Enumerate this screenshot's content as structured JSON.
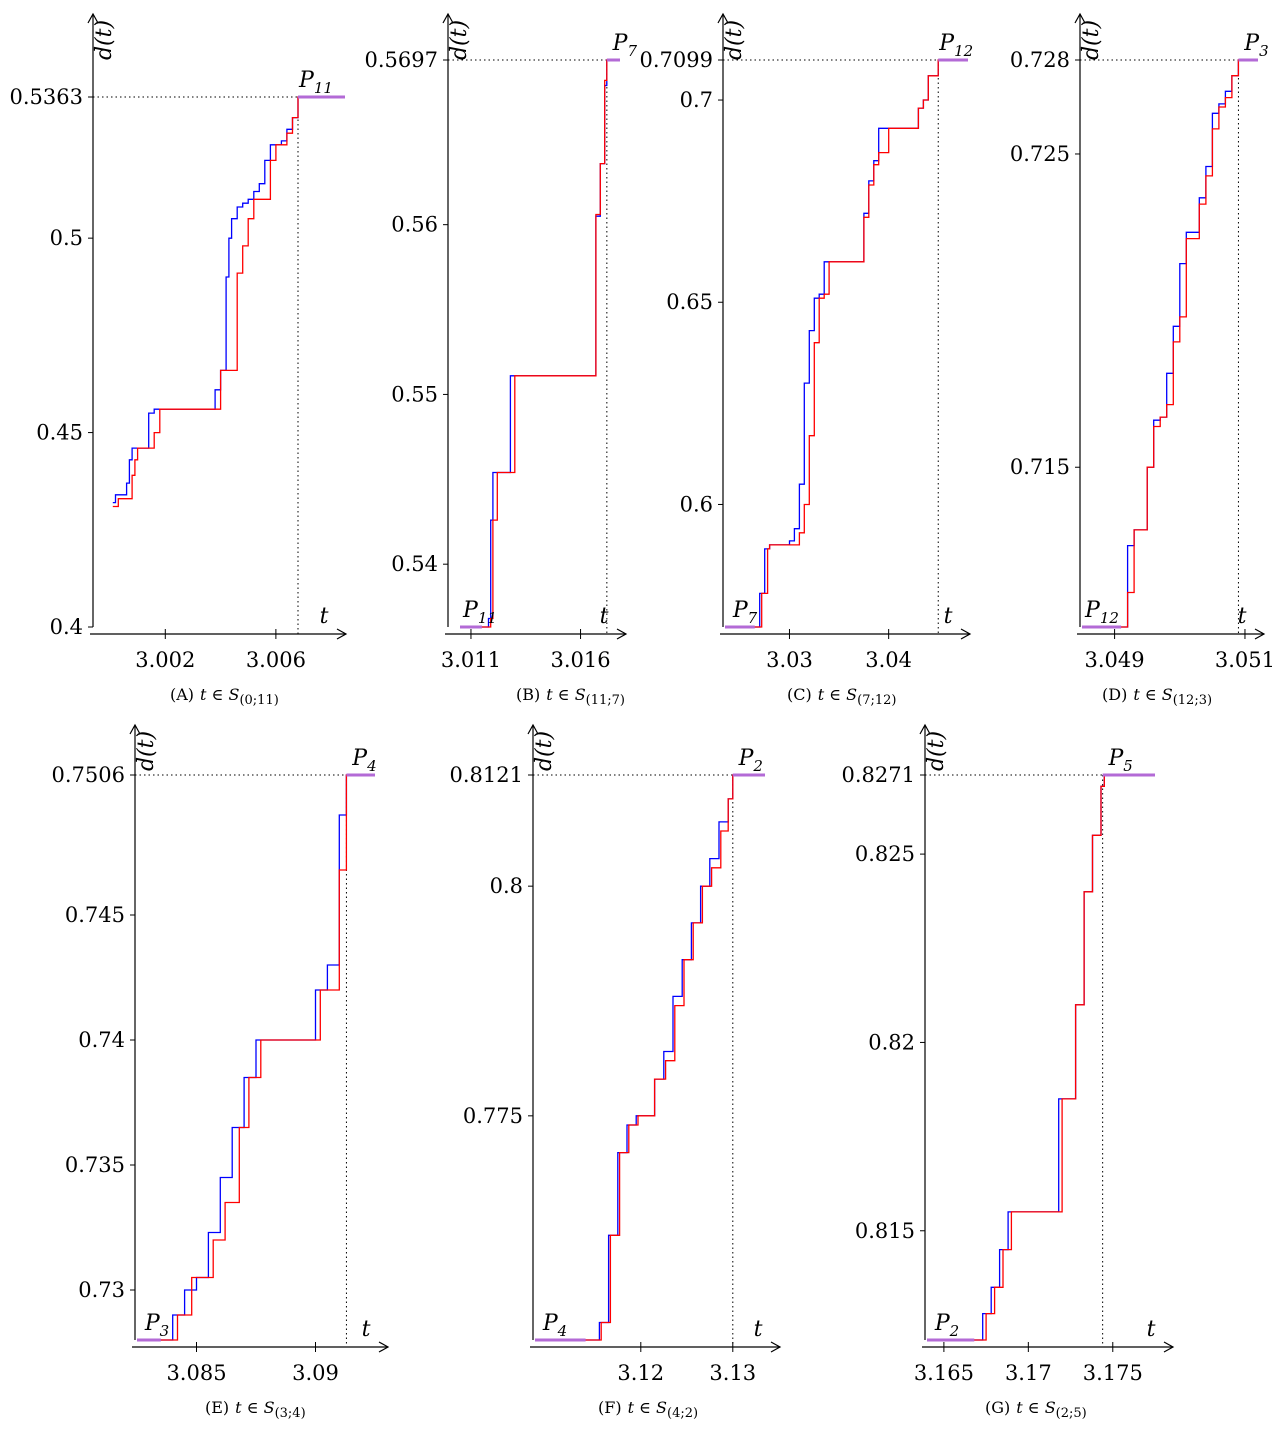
{
  "chart_data": [
    {
      "type": "line",
      "caption": {
        "tag": "(A)",
        "text": "t ∈ S",
        "sub": "(0;11)"
      },
      "x_axis_label": "t",
      "y_axis_label": "d(t)",
      "xlim": [
        3.0,
        3.0085
      ],
      "ylim": [
        0.4,
        0.5363
      ],
      "x_ticks": [
        {
          "v": 3.002,
          "label": "3.002"
        },
        {
          "v": 3.006,
          "label": "3.006"
        }
      ],
      "y_ticks": [
        {
          "v": 0.4,
          "label": "0.4"
        },
        {
          "v": 0.45,
          "label": "0.45"
        },
        {
          "v": 0.5,
          "label": "0.5"
        }
      ],
      "y_target": {
        "v": 0.5363,
        "label": "0.5363"
      },
      "x_target": 3.0068,
      "start_point": {
        "label": "",
        "sub": ""
      },
      "end_point": {
        "label": "P",
        "sub": "11"
      },
      "series": [
        {
          "color": "#0000ff",
          "x": [
            3.0001,
            3.0002,
            3.0005,
            3.0006,
            3.0007,
            3.0008,
            3.001,
            3.0012,
            3.0014,
            3.0016,
            3.0018,
            3.002,
            3.0022,
            3.003,
            3.0038,
            3.004,
            3.0042,
            3.0043,
            3.0044,
            3.0046,
            3.0048,
            3.005,
            3.0052,
            3.0054,
            3.0056,
            3.0058,
            3.006,
            3.0062,
            3.0064,
            3.0066,
            3.0068,
            3.0085
          ],
          "y": [
            0.432,
            0.434,
            0.434,
            0.437,
            0.443,
            0.446,
            0.446,
            0.446,
            0.455,
            0.456,
            0.456,
            0.456,
            0.456,
            0.456,
            0.461,
            0.466,
            0.49,
            0.5,
            0.505,
            0.508,
            0.509,
            0.51,
            0.512,
            0.514,
            0.52,
            0.524,
            0.524,
            0.525,
            0.528,
            0.531,
            0.5363,
            0.5363
          ]
        },
        {
          "color": "#ff0000",
          "x": [
            3.0001,
            3.0003,
            3.0006,
            3.0008,
            3.0009,
            3.001,
            3.0012,
            3.0014,
            3.0016,
            3.0018,
            3.002,
            3.003,
            3.0038,
            3.004,
            3.0042,
            3.0044,
            3.0046,
            3.0048,
            3.005,
            3.0052,
            3.0054,
            3.0056,
            3.0058,
            3.006,
            3.0062,
            3.0064,
            3.0066,
            3.0068,
            3.0085
          ],
          "y": [
            0.431,
            0.433,
            0.433,
            0.439,
            0.443,
            0.446,
            0.446,
            0.446,
            0.45,
            0.456,
            0.456,
            0.456,
            0.456,
            0.466,
            0.466,
            0.466,
            0.491,
            0.498,
            0.505,
            0.51,
            0.51,
            0.51,
            0.52,
            0.524,
            0.524,
            0.527,
            0.531,
            0.5363,
            0.5363
          ]
        }
      ]
    },
    {
      "type": "line",
      "caption": {
        "tag": "(B)",
        "text": "t ∈ S",
        "sub": "(11;7)"
      },
      "x_axis_label": "t",
      "y_axis_label": "d(t)",
      "xlim": [
        3.0105,
        3.0178
      ],
      "ylim": [
        0.5363,
        0.5697
      ],
      "x_ticks": [
        {
          "v": 3.011,
          "label": "3.011"
        },
        {
          "v": 3.016,
          "label": "3.016"
        }
      ],
      "y_ticks": [
        {
          "v": 0.54,
          "label": "0.54"
        },
        {
          "v": 0.55,
          "label": "0.55"
        },
        {
          "v": 0.56,
          "label": "0.56"
        }
      ],
      "y_target": {
        "v": 0.5697,
        "label": "0.5697"
      },
      "x_target": 3.0172,
      "start_point": {
        "label": "P",
        "sub": "11"
      },
      "end_point": {
        "label": "P",
        "sub": "7"
      },
      "series": [
        {
          "color": "#0000ff",
          "x": [
            3.0105,
            3.0115,
            3.0118,
            3.0119,
            3.012,
            3.0122,
            3.0125,
            3.0128,
            3.013,
            3.014,
            3.015,
            3.0165,
            3.0167,
            3.0169,
            3.0171,
            3.0172,
            3.0178
          ],
          "y": [
            0.5363,
            0.5363,
            0.5368,
            0.5426,
            0.5454,
            0.5454,
            0.5454,
            0.5511,
            0.5511,
            0.5511,
            0.5511,
            0.5511,
            0.5605,
            0.5636,
            0.5682,
            0.5697,
            0.5697
          ]
        },
        {
          "color": "#ff0000",
          "x": [
            3.0105,
            3.0117,
            3.0119,
            3.012,
            3.0122,
            3.0125,
            3.0129,
            3.013,
            3.014,
            3.0165,
            3.0167,
            3.0169,
            3.0171,
            3.0172,
            3.0178
          ],
          "y": [
            0.5363,
            0.5363,
            0.5368,
            0.5426,
            0.5454,
            0.5454,
            0.5454,
            0.5511,
            0.5511,
            0.5511,
            0.5606,
            0.5636,
            0.5685,
            0.5697,
            0.5697
          ]
        }
      ]
    },
    {
      "type": "line",
      "caption": {
        "tag": "(C)",
        "text": "t ∈ S",
        "sub": "(7;12)"
      },
      "x_axis_label": "t",
      "y_axis_label": "d(t)",
      "xlim": [
        3.0235,
        3.048
      ],
      "ylim": [
        0.5697,
        0.7099
      ],
      "x_ticks": [
        {
          "v": 3.03,
          "label": "3.03"
        },
        {
          "v": 3.04,
          "label": "3.04"
        }
      ],
      "y_ticks": [
        {
          "v": 0.6,
          "label": "0.6"
        },
        {
          "v": 0.65,
          "label": "0.65"
        },
        {
          "v": 0.7,
          "label": "0.7"
        }
      ],
      "y_target": {
        "v": 0.7099,
        "label": "0.7099"
      },
      "x_target": 3.045,
      "start_point": {
        "label": "P",
        "sub": "7"
      },
      "end_point": {
        "label": "P",
        "sub": "12"
      },
      "series": [
        {
          "color": "#0000ff",
          "x": [
            3.0235,
            3.0265,
            3.027,
            3.0275,
            3.028,
            3.03,
            3.0305,
            3.031,
            3.0315,
            3.032,
            3.0325,
            3.033,
            3.0335,
            3.034,
            3.037,
            3.0375,
            3.038,
            3.0385,
            3.039,
            3.04,
            3.0425,
            3.043,
            3.0435,
            3.044,
            3.045,
            3.048
          ],
          "y": [
            0.5697,
            0.5697,
            0.578,
            0.589,
            0.59,
            0.591,
            0.594,
            0.605,
            0.63,
            0.643,
            0.651,
            0.652,
            0.66,
            0.66,
            0.66,
            0.672,
            0.68,
            0.685,
            0.693,
            0.693,
            0.693,
            0.698,
            0.7,
            0.706,
            0.7099,
            0.7099
          ]
        },
        {
          "color": "#ff0000",
          "x": [
            3.0235,
            3.0268,
            3.0272,
            3.0278,
            3.028,
            3.03,
            3.031,
            3.0315,
            3.032,
            3.0325,
            3.033,
            3.0335,
            3.034,
            3.037,
            3.0375,
            3.038,
            3.0385,
            3.039,
            3.04,
            3.0425,
            3.043,
            3.0435,
            3.044,
            3.045,
            3.048
          ],
          "y": [
            0.5697,
            0.5697,
            0.578,
            0.589,
            0.59,
            0.59,
            0.593,
            0.6,
            0.617,
            0.64,
            0.651,
            0.652,
            0.66,
            0.66,
            0.671,
            0.679,
            0.684,
            0.687,
            0.693,
            0.693,
            0.698,
            0.7,
            0.706,
            0.7099,
            0.7099
          ]
        }
      ]
    },
    {
      "type": "line",
      "caption": {
        "tag": "(D)",
        "text": "t ∈ S",
        "sub": "(12;3)"
      },
      "x_axis_label": "t",
      "y_axis_label": "d(t)",
      "xlim": [
        3.0485,
        3.0512
      ],
      "ylim": [
        0.7099,
        0.728
      ],
      "x_ticks": [
        {
          "v": 3.049,
          "label": "3.049"
        },
        {
          "v": 3.051,
          "label": "3.051"
        }
      ],
      "y_ticks": [
        {
          "v": 0.715,
          "label": "0.715"
        },
        {
          "v": 0.725,
          "label": "0.725"
        }
      ],
      "y_target": {
        "v": 0.728,
        "label": "0.728"
      },
      "x_target": 3.0509,
      "start_point": {
        "label": "P",
        "sub": "12"
      },
      "end_point": {
        "label": "P",
        "sub": "3"
      },
      "series": [
        {
          "color": "#0000ff",
          "x": [
            3.0485,
            3.0491,
            3.0492,
            3.0493,
            3.0495,
            3.0496,
            3.0497,
            3.0498,
            3.0499,
            3.05,
            3.0501,
            3.0502,
            3.0503,
            3.0504,
            3.0505,
            3.0506,
            3.0507,
            3.0508,
            3.0509,
            3.0512
          ],
          "y": [
            0.7099,
            0.7099,
            0.7125,
            0.713,
            0.715,
            0.7165,
            0.7166,
            0.718,
            0.7195,
            0.7215,
            0.7225,
            0.7225,
            0.7236,
            0.7246,
            0.7263,
            0.7266,
            0.727,
            0.7275,
            0.728,
            0.728
          ]
        },
        {
          "color": "#ff0000",
          "x": [
            3.0485,
            3.0491,
            3.0492,
            3.0493,
            3.0495,
            3.0496,
            3.0497,
            3.0498,
            3.0499,
            3.05,
            3.0501,
            3.0502,
            3.0503,
            3.0504,
            3.0505,
            3.0506,
            3.0507,
            3.0508,
            3.0509,
            3.0512
          ],
          "y": [
            0.7099,
            0.7099,
            0.711,
            0.713,
            0.715,
            0.7163,
            0.7166,
            0.717,
            0.719,
            0.7198,
            0.7223,
            0.7223,
            0.7234,
            0.7243,
            0.7258,
            0.7265,
            0.7268,
            0.7275,
            0.728,
            0.728
          ]
        }
      ]
    },
    {
      "type": "line",
      "caption": {
        "tag": "(E)",
        "text": "t ∈ S",
        "sub": "(3;4)"
      },
      "x_axis_label": "t",
      "y_axis_label": "d(t)",
      "xlim": [
        3.0825,
        3.0925
      ],
      "ylim": [
        0.728,
        0.7506
      ],
      "x_ticks": [
        {
          "v": 3.085,
          "label": "3.085"
        },
        {
          "v": 3.09,
          "label": "3.09"
        }
      ],
      "y_ticks": [
        {
          "v": 0.73,
          "label": "0.73"
        },
        {
          "v": 0.735,
          "label": "0.735"
        },
        {
          "v": 0.74,
          "label": "0.74"
        },
        {
          "v": 0.745,
          "label": "0.745"
        }
      ],
      "y_target": {
        "v": 0.7506,
        "label": "0.7506"
      },
      "x_target": 3.0913,
      "start_point": {
        "label": "P",
        "sub": "3"
      },
      "end_point": {
        "label": "P",
        "sub": "4"
      },
      "series": [
        {
          "color": "#0000ff",
          "x": [
            3.0825,
            3.0835,
            3.084,
            3.0845,
            3.085,
            3.0855,
            3.086,
            3.0865,
            3.087,
            3.0875,
            3.0885,
            3.089,
            3.0895,
            3.09,
            3.0905,
            3.091,
            3.0913,
            3.0925
          ],
          "y": [
            0.728,
            0.728,
            0.729,
            0.73,
            0.7305,
            0.7323,
            0.7345,
            0.7365,
            0.7385,
            0.74,
            0.74,
            0.74,
            0.74,
            0.742,
            0.743,
            0.749,
            0.7506,
            0.7506
          ]
        },
        {
          "color": "#ff0000",
          "x": [
            3.0825,
            3.0835,
            3.0842,
            3.0848,
            3.0852,
            3.0857,
            3.0862,
            3.0868,
            3.0872,
            3.0877,
            3.0885,
            3.089,
            3.0895,
            3.0902,
            3.0907,
            3.091,
            3.0913,
            3.0925
          ],
          "y": [
            0.728,
            0.728,
            0.729,
            0.7305,
            0.7305,
            0.732,
            0.7335,
            0.7365,
            0.7385,
            0.74,
            0.74,
            0.74,
            0.74,
            0.742,
            0.742,
            0.7468,
            0.7506,
            0.7506
          ]
        }
      ]
    },
    {
      "type": "line",
      "caption": {
        "tag": "(F)",
        "text": "t ∈ S",
        "sub": "(4;2)"
      },
      "x_axis_label": "t",
      "y_axis_label": "d(t)",
      "xlim": [
        3.1085,
        3.1335
      ],
      "ylim": [
        0.7506,
        0.8121
      ],
      "x_ticks": [
        {
          "v": 3.12,
          "label": "3.12"
        },
        {
          "v": 3.13,
          "label": "3.13"
        }
      ],
      "y_ticks": [
        {
          "v": 0.775,
          "label": "0.775"
        },
        {
          "v": 0.8,
          "label": "0.8"
        }
      ],
      "y_target": {
        "v": 0.8121,
        "label": "0.8121"
      },
      "x_target": 3.13,
      "start_point": {
        "label": "P",
        "sub": "4"
      },
      "end_point": {
        "label": "P",
        "sub": "2"
      },
      "series": [
        {
          "color": "#0000ff",
          "x": [
            3.1085,
            3.114,
            3.1155,
            3.1165,
            3.1175,
            3.1185,
            3.1195,
            3.1215,
            3.1225,
            3.1235,
            3.1245,
            3.1255,
            3.1265,
            3.1275,
            3.1285,
            3.1295,
            3.13,
            3.1335
          ],
          "y": [
            0.7506,
            0.7506,
            0.7525,
            0.762,
            0.771,
            0.774,
            0.775,
            0.779,
            0.782,
            0.788,
            0.792,
            0.796,
            0.8,
            0.803,
            0.807,
            0.8095,
            0.8121,
            0.8121
          ]
        },
        {
          "color": "#ff0000",
          "x": [
            3.1085,
            3.1142,
            3.1157,
            3.1167,
            3.1177,
            3.1187,
            3.1197,
            3.1215,
            3.1227,
            3.1237,
            3.1247,
            3.1257,
            3.1267,
            3.1277,
            3.1287,
            3.1295,
            3.13,
            3.1335
          ],
          "y": [
            0.7506,
            0.7506,
            0.7525,
            0.762,
            0.771,
            0.774,
            0.775,
            0.779,
            0.781,
            0.787,
            0.792,
            0.796,
            0.8,
            0.802,
            0.806,
            0.8095,
            0.8121,
            0.8121
          ]
        }
      ]
    },
    {
      "type": "line",
      "caption": {
        "tag": "(G)",
        "text": "t ∈ S",
        "sub": "(2;5)"
      },
      "x_axis_label": "t",
      "y_axis_label": "d(t)",
      "xlim": [
        3.164,
        3.1775
      ],
      "ylim": [
        0.8121,
        0.8271
      ],
      "x_ticks": [
        {
          "v": 3.165,
          "label": "3.165"
        },
        {
          "v": 3.17,
          "label": "3.17"
        },
        {
          "v": 3.175,
          "label": "3.175"
        }
      ],
      "y_ticks": [
        {
          "v": 0.815,
          "label": "0.815"
        },
        {
          "v": 0.82,
          "label": "0.82"
        },
        {
          "v": 0.825,
          "label": "0.825"
        }
      ],
      "y_target": {
        "v": 0.8271,
        "label": "0.8271"
      },
      "x_target": 3.1744,
      "start_point": {
        "label": "P",
        "sub": "2"
      },
      "end_point": {
        "label": "P",
        "sub": "5"
      },
      "series": [
        {
          "color": "#0000ff",
          "x": [
            3.164,
            3.1668,
            3.1673,
            3.1678,
            3.1683,
            3.1688,
            3.1698,
            3.1708,
            3.1718,
            3.1728,
            3.1733,
            3.1738,
            3.1743,
            3.1745,
            3.1775
          ],
          "y": [
            0.8121,
            0.8121,
            0.8128,
            0.8135,
            0.8145,
            0.8155,
            0.8155,
            0.8155,
            0.8185,
            0.821,
            0.824,
            0.8255,
            0.8268,
            0.8271,
            0.8271
          ]
        },
        {
          "color": "#ff0000",
          "x": [
            3.164,
            3.167,
            3.1675,
            3.168,
            3.1685,
            3.169,
            3.17,
            3.171,
            3.172,
            3.1728,
            3.1733,
            3.1738,
            3.1743,
            3.1745,
            3.1775
          ],
          "y": [
            0.8121,
            0.8121,
            0.8128,
            0.8135,
            0.8145,
            0.8155,
            0.8155,
            0.8155,
            0.8185,
            0.821,
            0.824,
            0.8255,
            0.8268,
            0.8271,
            0.8271
          ]
        }
      ]
    }
  ]
}
